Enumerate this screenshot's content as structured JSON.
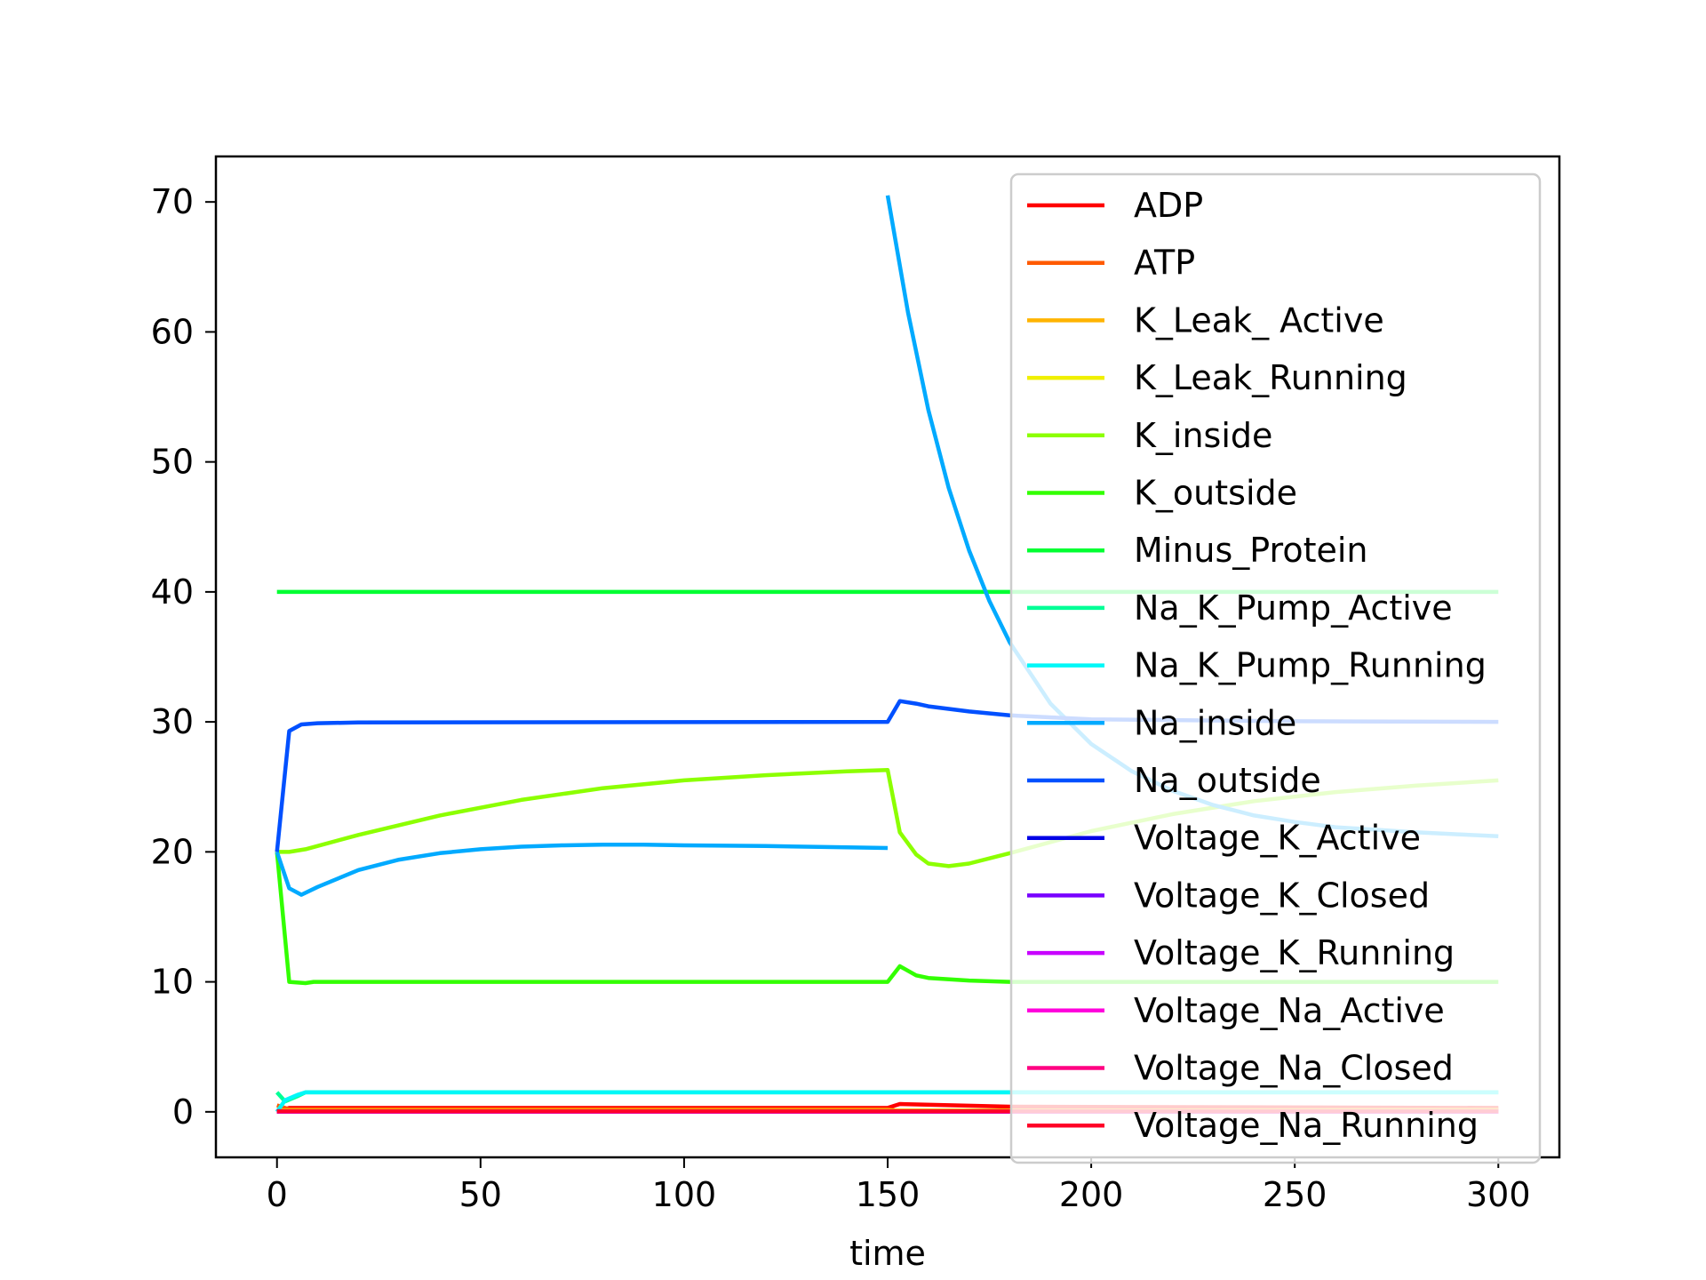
{
  "chart_data": {
    "type": "line",
    "title": "",
    "xlabel": "time",
    "ylabel": "",
    "xlim": [
      -15,
      315
    ],
    "ylim": [
      -3.5,
      73.5
    ],
    "xticks": [
      0,
      50,
      100,
      150,
      200,
      250,
      300
    ],
    "yticks": [
      0,
      10,
      20,
      30,
      40,
      50,
      60,
      70
    ],
    "grid": false,
    "legend_position": "upper right",
    "series": [
      {
        "name": "ADP",
        "color": "#ff0000",
        "x": [
          0,
          3,
          150,
          153,
          180,
          300
        ],
        "y": [
          0,
          0.3,
          0.3,
          0.6,
          0.4,
          0.3
        ]
      },
      {
        "name": "ATP",
        "color": "#ff5a00",
        "x": [
          0,
          3,
          150,
          153,
          300
        ],
        "y": [
          0.5,
          0.2,
          0.2,
          0.05,
          0.2
        ]
      },
      {
        "name": "K_Leak_ Active",
        "color": "#ffb400",
        "x": [
          0,
          300
        ],
        "y": [
          0.1,
          0.1
        ]
      },
      {
        "name": "K_Leak_Running",
        "color": "#f0f000",
        "x": [
          0,
          300
        ],
        "y": [
          0.1,
          0.1
        ]
      },
      {
        "name": "K_inside",
        "color": "#8cff00",
        "x": [
          0,
          3,
          7,
          20,
          40,
          60,
          80,
          100,
          120,
          140,
          150,
          153,
          157,
          160,
          165,
          170,
          180,
          200,
          220,
          240,
          260,
          280,
          300
        ],
        "y": [
          20,
          20,
          20.2,
          21.3,
          22.8,
          24,
          24.9,
          25.5,
          25.9,
          26.2,
          26.3,
          21.5,
          19.8,
          19.1,
          18.9,
          19.1,
          19.9,
          21.6,
          22.9,
          23.9,
          24.6,
          25.1,
          25.5
        ]
      },
      {
        "name": "K_outside",
        "color": "#32ff00",
        "x": [
          0,
          3,
          7,
          9,
          150,
          153,
          157,
          160,
          170,
          180,
          300
        ],
        "y": [
          20,
          10,
          9.9,
          10,
          10,
          11.2,
          10.5,
          10.3,
          10.1,
          10,
          10
        ]
      },
      {
        "name": "Minus_Protein",
        "color": "#00ff32",
        "x": [
          0,
          300
        ],
        "y": [
          40,
          40
        ]
      },
      {
        "name": "Na_K_Pump_Active",
        "color": "#00ff96",
        "x": [
          0,
          2,
          5,
          7,
          300
        ],
        "y": [
          1.5,
          0.8,
          1.2,
          1.5,
          1.5
        ]
      },
      {
        "name": "Na_K_Pump_Running",
        "color": "#00f8f8",
        "x": [
          0,
          2,
          5,
          7,
          300
        ],
        "y": [
          0,
          0.9,
          1.3,
          1.5,
          1.5
        ]
      },
      {
        "name": "Na_inside",
        "color": "#00aaff",
        "x": [
          0,
          3,
          6,
          10,
          20,
          30,
          40,
          50,
          60,
          70,
          80,
          90,
          100,
          120,
          140,
          150,
          null,
          150,
          155,
          160,
          165,
          170,
          175,
          180,
          190,
          200,
          210,
          220,
          230,
          240,
          250,
          260,
          270,
          280,
          290,
          300
        ],
        "y": [
          20,
          17.2,
          16.7,
          17.3,
          18.6,
          19.4,
          19.9,
          20.2,
          20.4,
          20.5,
          20.55,
          20.55,
          20.5,
          20.45,
          20.35,
          20.3,
          null,
          70.5,
          61.5,
          54,
          48,
          43.2,
          39.3,
          36.1,
          31.4,
          28.3,
          26.2,
          24.7,
          23.6,
          22.8,
          22.3,
          21.9,
          21.7,
          21.5,
          21.35,
          21.2
        ]
      },
      {
        "name": "Na_outside",
        "color": "#0050ff",
        "x": [
          0,
          3,
          6,
          10,
          20,
          150,
          153,
          157,
          160,
          170,
          180,
          200,
          250,
          300
        ],
        "y": [
          20,
          29.3,
          29.8,
          29.9,
          29.95,
          30,
          31.6,
          31.4,
          31.2,
          30.8,
          30.5,
          30.2,
          30.05,
          30
        ]
      },
      {
        "name": "Voltage_K_Active",
        "color": "#0000e6",
        "x": [
          0,
          300
        ],
        "y": [
          0.02,
          0.02
        ]
      },
      {
        "name": "Voltage_K_Closed",
        "color": "#7800ff",
        "x": [
          0,
          300
        ],
        "y": [
          0.02,
          0.02
        ]
      },
      {
        "name": "Voltage_K_Running",
        "color": "#c800ff",
        "x": [
          0,
          300
        ],
        "y": [
          0.02,
          0.02
        ]
      },
      {
        "name": "Voltage_Na_Active",
        "color": "#ff00dc",
        "x": [
          0,
          300
        ],
        "y": [
          0.02,
          0.02
        ]
      },
      {
        "name": "Voltage_Na_Closed",
        "color": "#ff0082",
        "x": [
          0,
          300
        ],
        "y": [
          0.05,
          0.05
        ]
      },
      {
        "name": "Voltage_Na_Running",
        "color": "#ff0028",
        "x": [
          0,
          300
        ],
        "y": [
          0.05,
          0.05
        ]
      }
    ]
  }
}
